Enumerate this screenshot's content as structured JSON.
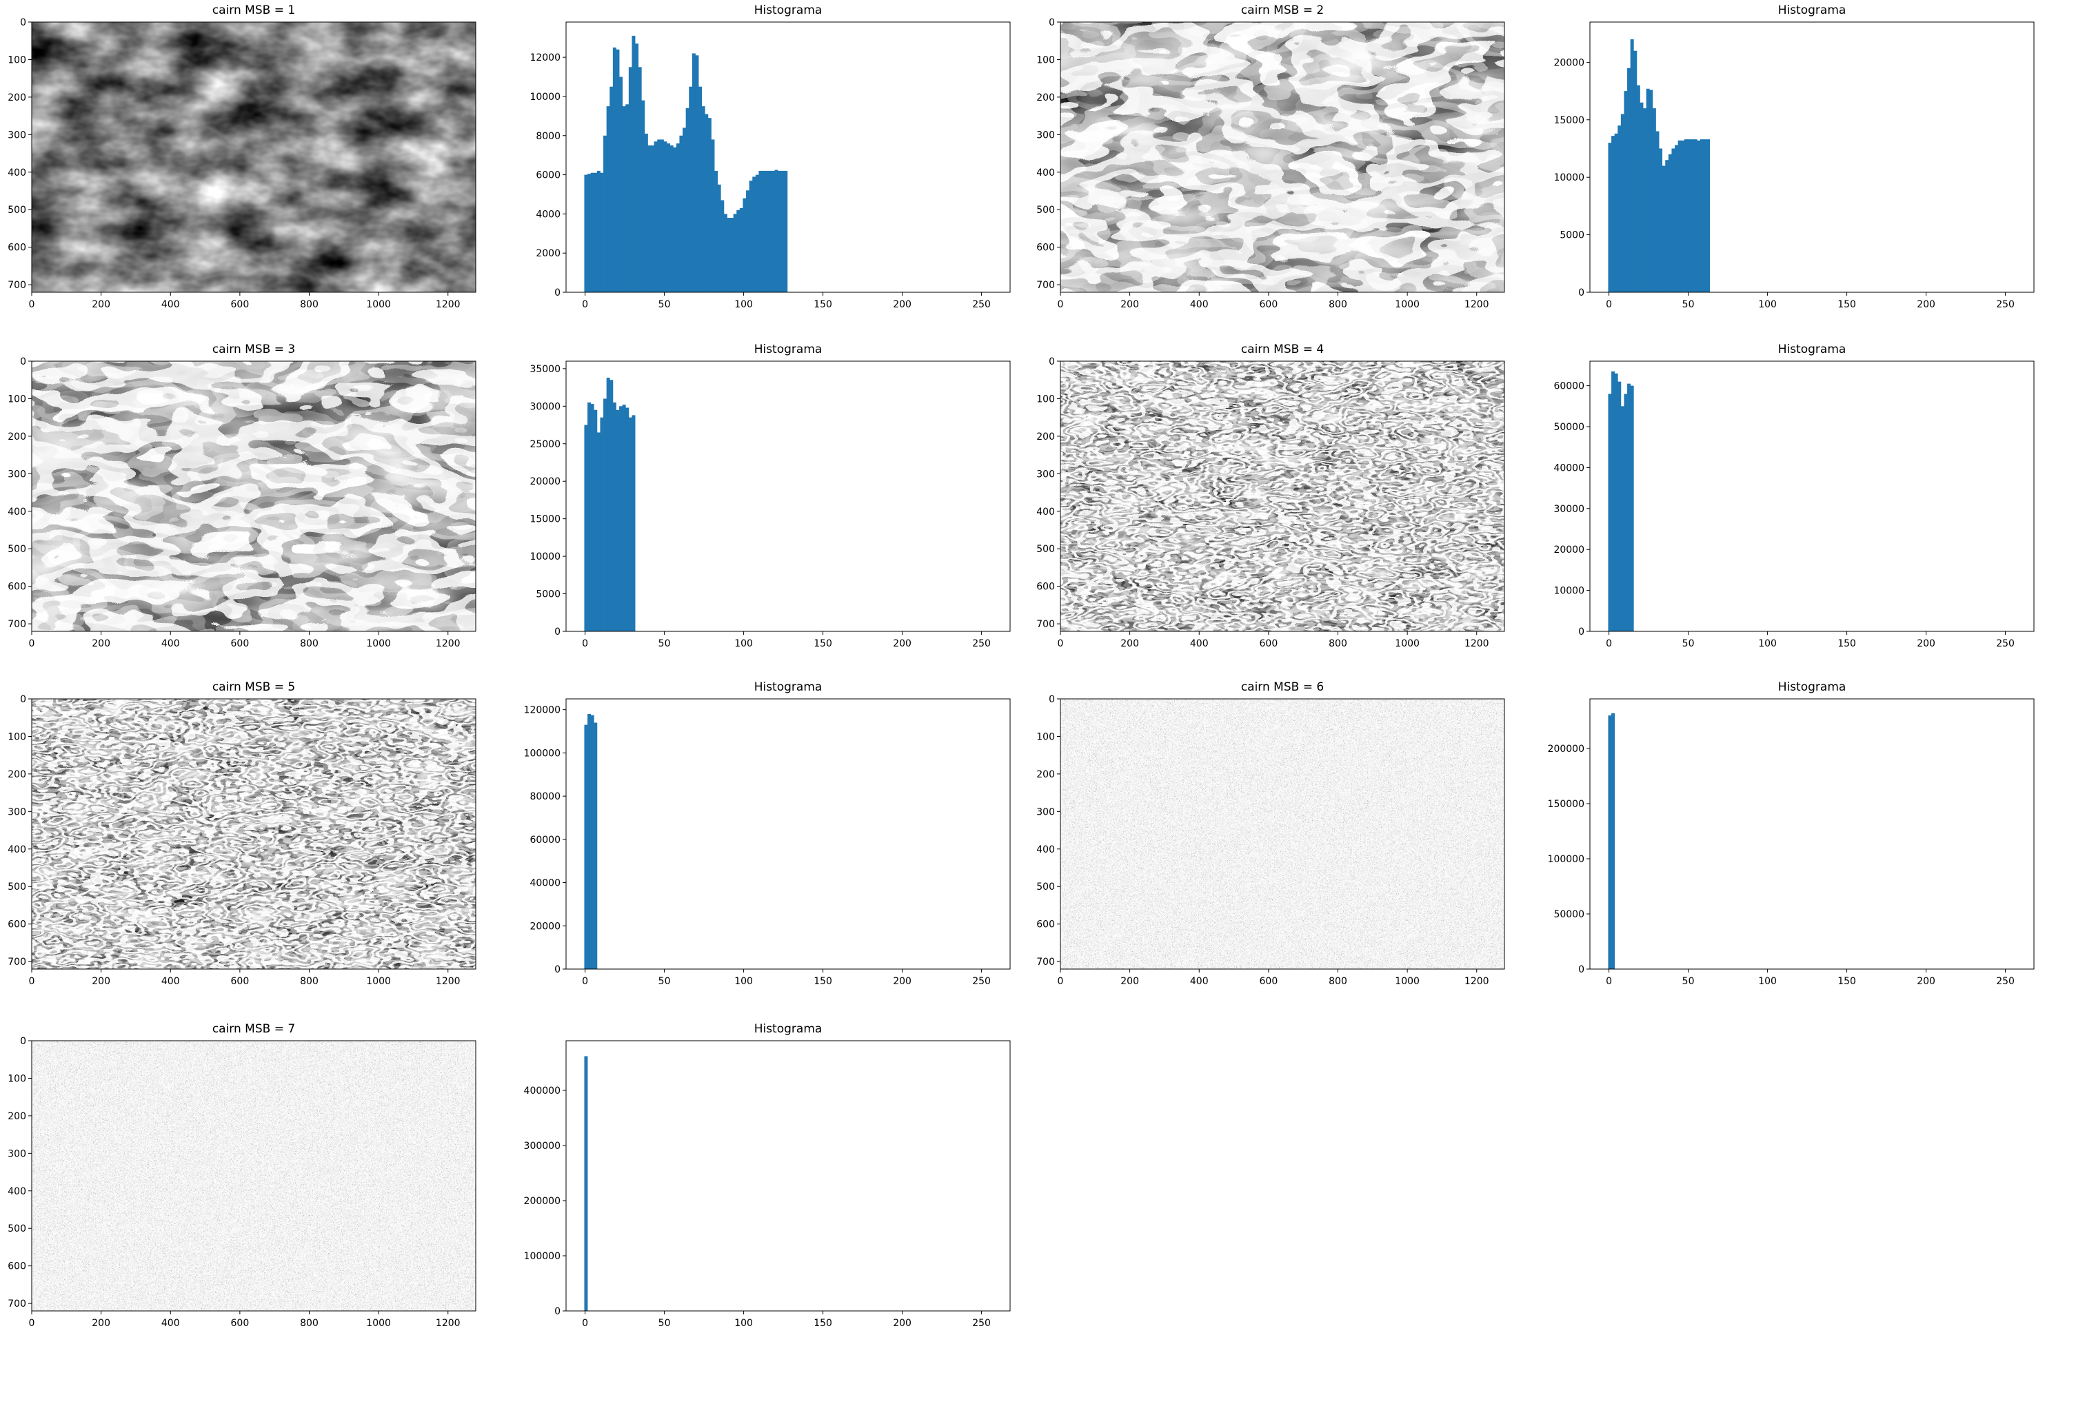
{
  "figure": {
    "panels": [
      {
        "title": "cairn MSB = 1"
      },
      {
        "title": "cairn MSB = 2"
      },
      {
        "title": "cairn MSB = 3"
      },
      {
        "title": "cairn MSB = 4"
      },
      {
        "title": "cairn MSB = 5"
      },
      {
        "title": "cairn MSB = 6"
      },
      {
        "title": "cairn MSB = 7"
      }
    ]
  },
  "style": {
    "bar_color": "#1f77b4",
    "axis_color": "#000000",
    "background": "#ffffff"
  },
  "chart_data": [
    {
      "type": "heatmap",
      "title": "cairn MSB = 1",
      "description_kind": "grayscale image of a stacked-stone cairn in mountains",
      "xlim": [
        0,
        1280
      ],
      "ylim": [
        720,
        0
      ],
      "xticks": [
        0,
        200,
        400,
        600,
        800,
        1000,
        1200
      ],
      "yticks": [
        0,
        100,
        200,
        300,
        400,
        500,
        600,
        700
      ],
      "grid": false
    },
    {
      "type": "bar",
      "title": "Histograma",
      "xlim": [
        -12,
        268
      ],
      "ylim": [
        0,
        13800
      ],
      "xticks": [
        0,
        50,
        100,
        150,
        200,
        250
      ],
      "yticks": [
        0,
        2000,
        4000,
        6000,
        8000,
        10000,
        12000
      ],
      "bin_width": 2,
      "bin_starts": [
        0,
        2,
        4,
        6,
        8,
        10,
        12,
        14,
        16,
        18,
        20,
        22,
        24,
        26,
        28,
        30,
        32,
        34,
        36,
        38,
        40,
        42,
        44,
        46,
        48,
        50,
        52,
        54,
        56,
        58,
        60,
        62,
        64,
        66,
        68,
        70,
        72,
        74,
        76,
        78,
        80,
        82,
        84,
        86,
        88,
        90,
        92,
        94,
        96,
        98,
        100,
        102,
        104,
        106,
        108,
        110,
        112,
        114,
        116,
        118,
        120,
        122,
        124,
        126
      ],
      "values": [
        6000,
        6050,
        6100,
        6100,
        6200,
        6100,
        8000,
        9500,
        10500,
        12500,
        12400,
        11000,
        9500,
        9600,
        11500,
        13100,
        12700,
        11500,
        9800,
        8100,
        7500,
        7500,
        7700,
        7800,
        7800,
        7700,
        7600,
        7500,
        7400,
        7600,
        8000,
        8400,
        9400,
        10500,
        12200,
        12100,
        10500,
        9500,
        9100,
        8900,
        7800,
        6200,
        5500,
        4700,
        4000,
        3800,
        3800,
        4000,
        4200,
        4300,
        4800,
        5200,
        5700,
        5900,
        6000,
        6200,
        6200,
        6200,
        6200,
        6200,
        6250,
        6200,
        6200,
        6200
      ],
      "grid": false
    },
    {
      "type": "heatmap",
      "title": "cairn MSB = 2",
      "xlim": [
        0,
        1280
      ],
      "ylim": [
        720,
        0
      ],
      "xticks": [
        0,
        200,
        400,
        600,
        800,
        1000,
        1200
      ],
      "yticks": [
        0,
        100,
        200,
        300,
        400,
        500,
        600,
        700
      ],
      "grid": false
    },
    {
      "type": "bar",
      "title": "Histograma",
      "xlim": [
        -12,
        268
      ],
      "ylim": [
        0,
        23500
      ],
      "xticks": [
        0,
        50,
        100,
        150,
        200,
        250
      ],
      "yticks": [
        0,
        5000,
        10000,
        15000,
        20000
      ],
      "bin_width": 2,
      "bin_starts": [
        0,
        2,
        4,
        6,
        8,
        10,
        12,
        14,
        16,
        18,
        20,
        22,
        24,
        26,
        28,
        30,
        32,
        34,
        36,
        38,
        40,
        42,
        44,
        46,
        48,
        50,
        52,
        54,
        56,
        58,
        60,
        62
      ],
      "values": [
        13000,
        13600,
        13800,
        14500,
        15500,
        17500,
        19500,
        22000,
        21000,
        18000,
        16500,
        16000,
        17700,
        17600,
        16000,
        14000,
        12500,
        11000,
        11500,
        12000,
        12500,
        12800,
        13200,
        13200,
        13300,
        13300,
        13300,
        13300,
        13200,
        13300,
        13300,
        13300
      ],
      "grid": false
    },
    {
      "type": "heatmap",
      "title": "cairn MSB = 3",
      "xlim": [
        0,
        1280
      ],
      "ylim": [
        720,
        0
      ],
      "xticks": [
        0,
        200,
        400,
        600,
        800,
        1000,
        1200
      ],
      "yticks": [
        0,
        100,
        200,
        300,
        400,
        500,
        600,
        700
      ],
      "grid": false
    },
    {
      "type": "bar",
      "title": "Histograma",
      "xlim": [
        -12,
        268
      ],
      "ylim": [
        0,
        36000
      ],
      "xticks": [
        0,
        50,
        100,
        150,
        200,
        250
      ],
      "yticks": [
        0,
        5000,
        10000,
        15000,
        20000,
        25000,
        30000,
        35000
      ],
      "bin_width": 2,
      "bin_starts": [
        0,
        2,
        4,
        6,
        8,
        10,
        12,
        14,
        16,
        18,
        20,
        22,
        24,
        26,
        28,
        30
      ],
      "values": [
        27500,
        30500,
        30300,
        29500,
        26500,
        28500,
        31000,
        33800,
        33500,
        30500,
        29500,
        30000,
        30200,
        29800,
        28500,
        28800
      ],
      "grid": false
    },
    {
      "type": "heatmap",
      "title": "cairn MSB = 4",
      "xlim": [
        0,
        1280
      ],
      "ylim": [
        720,
        0
      ],
      "xticks": [
        0,
        200,
        400,
        600,
        800,
        1000,
        1200
      ],
      "yticks": [
        0,
        100,
        200,
        300,
        400,
        500,
        600,
        700
      ],
      "grid": false
    },
    {
      "type": "bar",
      "title": "Histograma",
      "xlim": [
        -12,
        268
      ],
      "ylim": [
        0,
        66000
      ],
      "xticks": [
        0,
        50,
        100,
        150,
        200,
        250
      ],
      "yticks": [
        0,
        10000,
        20000,
        30000,
        40000,
        50000,
        60000
      ],
      "bin_width": 2,
      "bin_starts": [
        0,
        2,
        4,
        6,
        8,
        10,
        12,
        14
      ],
      "values": [
        58000,
        63500,
        63000,
        61000,
        55000,
        58000,
        60500,
        60000
      ],
      "grid": false
    },
    {
      "type": "heatmap",
      "title": "cairn MSB = 5",
      "xlim": [
        0,
        1280
      ],
      "ylim": [
        720,
        0
      ],
      "xticks": [
        0,
        200,
        400,
        600,
        800,
        1000,
        1200
      ],
      "yticks": [
        0,
        100,
        200,
        300,
        400,
        500,
        600,
        700
      ],
      "grid": false
    },
    {
      "type": "bar",
      "title": "Histograma",
      "xlim": [
        -12,
        268
      ],
      "ylim": [
        0,
        125000
      ],
      "xticks": [
        0,
        50,
        100,
        150,
        200,
        250
      ],
      "yticks": [
        0,
        20000,
        40000,
        60000,
        80000,
        100000,
        120000
      ],
      "bin_width": 2,
      "bin_starts": [
        0,
        2,
        4,
        6
      ],
      "values": [
        113000,
        118000,
        117500,
        114000
      ],
      "grid": false
    },
    {
      "type": "heatmap",
      "title": "cairn MSB = 6",
      "xlim": [
        0,
        1280
      ],
      "ylim": [
        720,
        0
      ],
      "xticks": [
        0,
        200,
        400,
        600,
        800,
        1000,
        1200
      ],
      "yticks": [
        0,
        100,
        200,
        300,
        400,
        500,
        600,
        700
      ],
      "grid": false
    },
    {
      "type": "bar",
      "title": "Histograma",
      "xlim": [
        -12,
        268
      ],
      "ylim": [
        0,
        245000
      ],
      "xticks": [
        0,
        50,
        100,
        150,
        200,
        250
      ],
      "yticks": [
        0,
        50000,
        100000,
        150000,
        200000
      ],
      "bin_width": 2,
      "bin_starts": [
        0,
        2
      ],
      "values": [
        230000,
        232000
      ],
      "grid": false
    },
    {
      "type": "heatmap",
      "title": "cairn MSB = 7",
      "xlim": [
        0,
        1280
      ],
      "ylim": [
        720,
        0
      ],
      "xticks": [
        0,
        200,
        400,
        600,
        800,
        1000,
        1200
      ],
      "yticks": [
        0,
        100,
        200,
        300,
        400,
        500,
        600,
        700
      ],
      "grid": false
    },
    {
      "type": "bar",
      "title": "Histograma",
      "xlim": [
        -12,
        268
      ],
      "ylim": [
        0,
        490000
      ],
      "xticks": [
        0,
        50,
        100,
        150,
        200,
        250
      ],
      "yticks": [
        0,
        100000,
        200000,
        300000,
        400000
      ],
      "bin_width": 2,
      "bin_starts": [
        0
      ],
      "values": [
        462000
      ],
      "grid": false
    }
  ]
}
